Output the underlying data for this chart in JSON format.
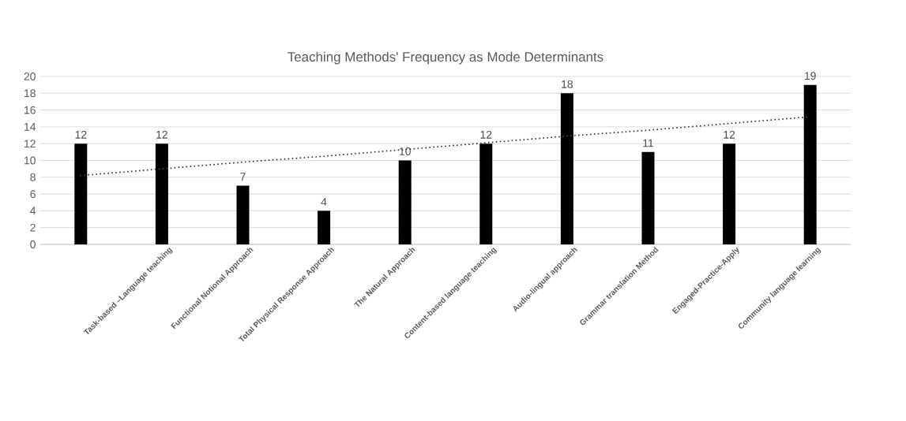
{
  "chart_data": {
    "type": "bar",
    "title": "Teaching Methods' Frequency as Mode Determinants",
    "categories": [
      null,
      "Task-based –Language teaching",
      "Functional Notional Approach",
      "Total Physical Response Approach",
      "The Natural Approach",
      "Content-based language teaching",
      "Audio-lingual approach",
      "Grammar translation Method",
      "Engaged-Practice-Apply",
      "Community language learning"
    ],
    "series": [
      {
        "color": "#000000",
        "values": [
          12,
          12,
          7,
          4,
          10,
          12,
          18,
          11,
          12,
          19
        ],
        "value_labels": [
          "12",
          "12",
          "7",
          "4",
          "10",
          "12",
          "18",
          "11",
          "12",
          "19"
        ]
      },
      {
        "type": "line",
        "color": "#404040",
        "line_style": "dotted",
        "values": [
          8.2,
          9.0,
          9.8,
          10.5,
          11.3,
          12.1,
          12.9,
          13.6,
          14.4,
          15.2
        ]
      }
    ],
    "ylim": [
      0,
      20
    ],
    "yticks": [
      0,
      2,
      4,
      6,
      8,
      10,
      12,
      14,
      16,
      18,
      20
    ],
    "grid": "y",
    "legend": false
  }
}
